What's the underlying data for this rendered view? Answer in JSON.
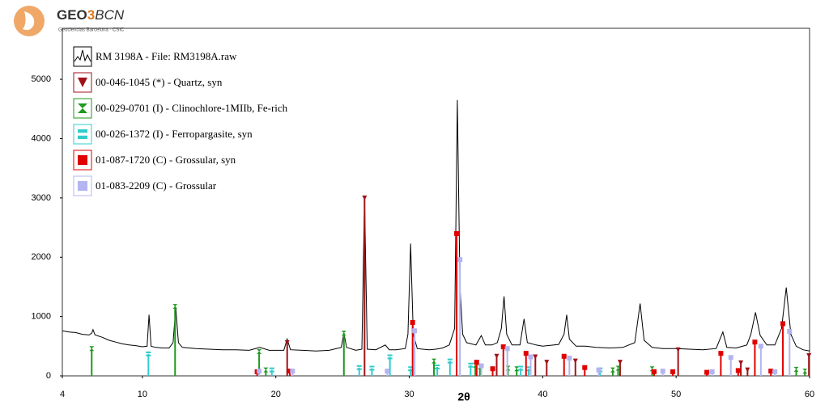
{
  "header": {
    "logo_parts": [
      "GEO",
      "3",
      "BCN"
    ],
    "logo_subtitle": "Geociencias Barcelona · CSIC"
  },
  "chart_data": {
    "type": "xrd",
    "x_label": "2θ",
    "xlim": [
      4,
      60
    ],
    "xticks": [
      4,
      10,
      20,
      30,
      40,
      50,
      60
    ],
    "ylim": [
      0,
      5860
    ],
    "yticks": [
      0,
      1000,
      2000,
      3000,
      4000,
      5000
    ],
    "grid": false,
    "legend": "top-left",
    "series": [
      {
        "name": "RM 3198A - File: RM3198A.raw",
        "color": "#000000",
        "style": "line",
        "marker": "zigzag",
        "x": [
          4,
          4.5,
          5,
          5.5,
          6,
          6.2,
          6.3,
          6.45,
          7,
          7.5,
          8,
          8.5,
          9,
          9.5,
          10,
          10.35,
          10.5,
          10.65,
          11,
          11.5,
          12,
          12.3,
          12.5,
          12.7,
          13,
          14,
          15,
          16,
          17,
          18,
          18.8,
          19.5,
          20.6,
          20.85,
          21.1,
          22,
          23,
          24,
          24.9,
          25.1,
          25.3,
          26,
          26.45,
          26.65,
          26.85,
          27.5,
          28.2,
          28.5,
          29,
          29.7,
          29.9,
          30.1,
          30.3,
          30.6,
          31,
          31.5,
          32,
          32.5,
          33,
          33.4,
          33.6,
          33.8,
          34,
          34.3,
          35,
          35.4,
          35.7,
          36.2,
          36.6,
          36.9,
          37.1,
          37.3,
          37.7,
          38.3,
          38.6,
          38.85,
          39.5,
          40,
          41.2,
          41.6,
          41.8,
          42,
          42.5,
          43.2,
          44,
          45,
          46,
          46.9,
          47.3,
          47.6,
          48.2,
          49,
          50,
          51,
          52,
          53,
          53.5,
          53.8,
          54.5,
          55.3,
          55.6,
          55.95,
          56.3,
          56.8,
          57.4,
          57.9,
          58.25,
          58.6,
          59,
          59.5,
          60
        ],
        "values": [
          760,
          740,
          730,
          700,
          690,
          720,
          780,
          690,
          650,
          600,
          570,
          540,
          520,
          510,
          490,
          500,
          1030,
          500,
          480,
          470,
          470,
          560,
          1150,
          560,
          480,
          460,
          450,
          440,
          440,
          430,
          480,
          430,
          430,
          620,
          440,
          430,
          420,
          430,
          480,
          720,
          480,
          430,
          450,
          3000,
          450,
          440,
          520,
          440,
          440,
          460,
          700,
          2230,
          700,
          460,
          450,
          440,
          450,
          470,
          520,
          800,
          4650,
          1500,
          700,
          560,
          520,
          680,
          520,
          520,
          560,
          800,
          1340,
          700,
          520,
          520,
          960,
          560,
          520,
          500,
          530,
          700,
          1030,
          620,
          500,
          500,
          480,
          470,
          480,
          560,
          1220,
          600,
          480,
          460,
          460,
          450,
          440,
          460,
          740,
          480,
          470,
          520,
          700,
          1070,
          680,
          520,
          520,
          800,
          1490,
          700,
          500,
          440,
          420
        ]
      },
      {
        "name": "00-046-1045 (*) - Quartz, syn",
        "color": "#a01218",
        "style": "stick",
        "marker": "triangle-down",
        "x": [
          20.85,
          26.65,
          36.55,
          39.45,
          40.3,
          42.45,
          45.8,
          50.15,
          54.85,
          55.35,
          59.95
        ],
        "values": [
          560,
          3000,
          330,
          320,
          230,
          250,
          230,
          440,
          220,
          100,
          340
        ]
      },
      {
        "name": "00-029-0701 (I) - Clinochlore-1MIIb, Fe-rich",
        "color": "#1e9a1e",
        "style": "stick",
        "marker": "hourglass",
        "x": [
          6.2,
          12.45,
          18.75,
          19.25,
          25.1,
          31.85,
          34.95,
          35.3,
          37.4,
          38.05,
          45.25,
          45.65,
          48.2,
          59,
          59.65
        ],
        "values": [
          460,
          1170,
          410,
          100,
          720,
          250,
          180,
          150,
          130,
          120,
          100,
          130,
          120,
          110,
          80
        ]
      },
      {
        "name": "00-026-1372 (I) - Ferropargasite, syn",
        "color": "#33cccc",
        "style": "stick",
        "marker": "double-bar",
        "x": [
          10.45,
          19.7,
          26.25,
          27.2,
          28.55,
          30.1,
          32.1,
          33.05,
          34.6,
          38.35,
          38.95,
          44.3
        ],
        "values": [
          370,
          100,
          140,
          130,
          320,
          120,
          150,
          250,
          180,
          130,
          120,
          100
        ]
      },
      {
        "name": "01-087-1720 (C) - Grossular, syn",
        "color": "#e00000",
        "style": "stick",
        "marker": "square",
        "x": [
          18.6,
          21.05,
          30.25,
          33.55,
          35.05,
          36.25,
          37.05,
          38.75,
          41.6,
          43.15,
          48.35,
          49.75,
          52.3,
          53.35,
          54.65,
          55.9,
          57.1,
          58
        ],
        "values": [
          70,
          80,
          900,
          2400,
          230,
          120,
          490,
          380,
          330,
          140,
          70,
          70,
          60,
          380,
          90,
          570,
          80,
          880
        ]
      },
      {
        "name": "01-083-2209 (C) - Grossular",
        "color": "#b4b4f0",
        "style": "stick",
        "marker": "square",
        "x": [
          18.75,
          21.25,
          28.35,
          30.4,
          33.8,
          35.4,
          37.35,
          39.1,
          42,
          44.2,
          49,
          52.7,
          54.1,
          56.35,
          57.4,
          58.5
        ],
        "values": [
          80,
          80,
          80,
          760,
          1960,
          170,
          460,
          320,
          300,
          100,
          80,
          70,
          310,
          500,
          70,
          750
        ]
      }
    ]
  }
}
